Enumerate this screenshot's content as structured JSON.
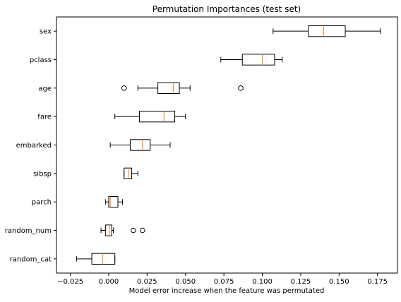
{
  "chart_data": {
    "type": "boxplot",
    "orientation": "horizontal",
    "title": "Permutation Importances (test set)",
    "xlabel": "Model error increase when the feature was permutated",
    "ylabel": "",
    "xlim": [
      -0.034,
      0.188
    ],
    "xticks": [
      -0.025,
      0.0,
      0.025,
      0.05,
      0.075,
      0.1,
      0.125,
      0.15,
      0.175
    ],
    "xtick_labels": [
      "−0.025",
      "0.000",
      "0.025",
      "0.050",
      "0.075",
      "0.100",
      "0.125",
      "0.150",
      "0.175"
    ],
    "grid": false,
    "colors": {
      "box_edge": "#000000",
      "median": "#ff7f0e",
      "whisker": "#000000"
    },
    "categories": [
      "sex",
      "pclass",
      "age",
      "fare",
      "embarked",
      "sibsp",
      "parch",
      "random_num",
      "random_cat"
    ],
    "boxes": [
      {
        "label": "sex",
        "whisker_low": 0.107,
        "q1": 0.13,
        "median": 0.14,
        "q3": 0.154,
        "whisker_high": 0.177,
        "outliers": []
      },
      {
        "label": "pclass",
        "whisker_low": 0.073,
        "q1": 0.087,
        "median": 0.1,
        "q3": 0.108,
        "whisker_high": 0.113,
        "outliers": []
      },
      {
        "label": "age",
        "whisker_low": 0.019,
        "q1": 0.032,
        "median": 0.042,
        "q3": 0.046,
        "whisker_high": 0.053,
        "outliers": [
          0.01,
          0.086
        ]
      },
      {
        "label": "fare",
        "whisker_low": 0.004,
        "q1": 0.02,
        "median": 0.036,
        "q3": 0.043,
        "whisker_high": 0.05,
        "outliers": []
      },
      {
        "label": "embarked",
        "whisker_low": 0.001,
        "q1": 0.014,
        "median": 0.022,
        "q3": 0.027,
        "whisker_high": 0.04,
        "outliers": []
      },
      {
        "label": "sibsp",
        "whisker_low": 0.01,
        "q1": 0.01,
        "median": 0.013,
        "q3": 0.015,
        "whisker_high": 0.019,
        "outliers": []
      },
      {
        "label": "parch",
        "whisker_low": -0.002,
        "q1": 0.0,
        "median": 0.001,
        "q3": 0.006,
        "whisker_high": 0.009,
        "outliers": []
      },
      {
        "label": "random_num",
        "whisker_low": -0.005,
        "q1": -0.002,
        "median": 0.0005,
        "q3": 0.002,
        "whisker_high": 0.003,
        "outliers": [
          0.016,
          0.022
        ]
      },
      {
        "label": "random_cat",
        "whisker_low": -0.021,
        "q1": -0.011,
        "median": -0.004,
        "q3": 0.004,
        "whisker_high": 0.004,
        "outliers": []
      }
    ]
  }
}
